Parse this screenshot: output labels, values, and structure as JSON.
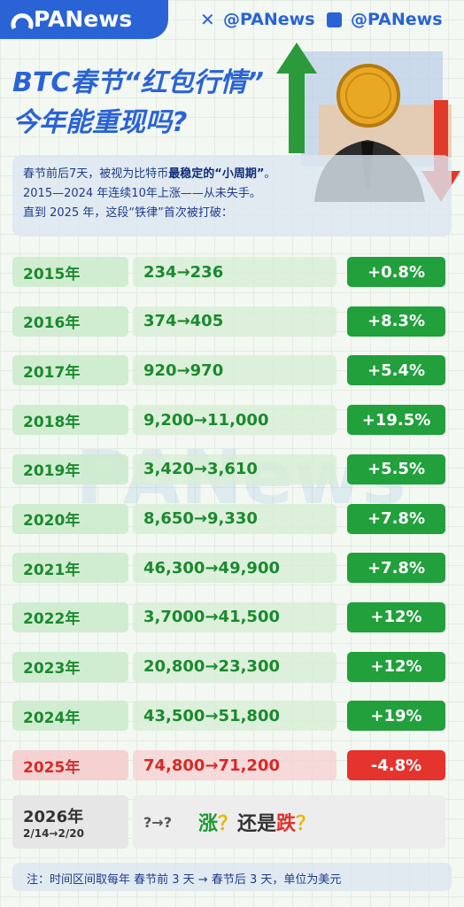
{
  "header": {
    "logo": "PANews",
    "social": [
      "@PANews",
      "@PANews"
    ]
  },
  "title": [
    "BTC春节“红包行情”",
    "今年能重现吗?"
  ],
  "intro": [
    [
      "春节前后7天，被视为比特币",
      "最稳定的“小周期”",
      "。"
    ],
    [
      "2015—2024 年连续10年上涨——从未失手。"
    ],
    [
      "直到 2025 年，这段“铁律”首次被打破："
    ]
  ],
  "watermark": "PANews",
  "table": {
    "rows": [
      [
        "2015年",
        "234→236",
        "+0.8%"
      ],
      [
        "2016年",
        "374→405",
        "+8.3%"
      ],
      [
        "2017年",
        "920→970",
        "+5.4%"
      ],
      [
        "2018年",
        "9,200→11,000",
        "+19.5%"
      ],
      [
        "2019年",
        "3,420→3,610",
        "+5.5%"
      ],
      [
        "2020年",
        "8,650→9,330",
        "+7.8%"
      ],
      [
        "2021年",
        "46,300→49,900",
        "+7.8%"
      ],
      [
        "2022年",
        "3,7000→41,500",
        "+12%"
      ],
      [
        "2023年",
        "20,800→23,300",
        "+12%"
      ],
      [
        "2024年",
        "43,500→51,800",
        "+19%"
      ],
      [
        "2025年",
        "74,800→71,200",
        "-4.8%"
      ]
    ]
  },
  "future": {
    "year": "2026年",
    "dates": "2/14→2/20",
    "range": "?→?",
    "question": [
      "涨",
      "？",
      "还是",
      "跌",
      "？"
    ]
  },
  "note": "注：时间区间取每年 春节前 3 天 → 春节后 3 天，单位为美元"
}
